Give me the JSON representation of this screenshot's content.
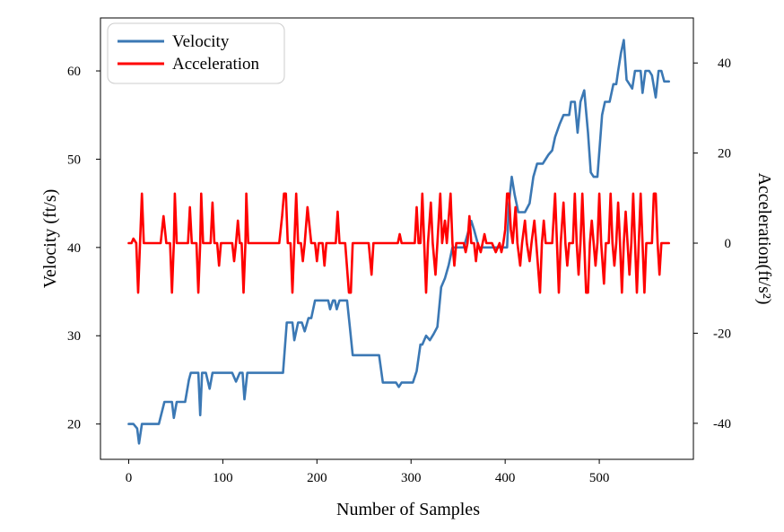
{
  "chart_data": {
    "type": "line",
    "xlabel": "Number of Samples",
    "ylabel_left": "Velocity (ft/s)",
    "ylabel_right": "Acceleration(ft/s²)",
    "xlim": [
      -30,
      600
    ],
    "ylim_left": [
      16,
      66
    ],
    "ylim_right": [
      -48,
      50
    ],
    "x_ticks": [
      0,
      100,
      200,
      300,
      400,
      500
    ],
    "y_ticks_left": [
      20,
      30,
      40,
      50,
      60
    ],
    "y_ticks_right": [
      -40,
      -20,
      0,
      20,
      40
    ],
    "legend_position": "top-left",
    "grid": false,
    "series": [
      {
        "name": "Velocity",
        "axis": "left",
        "color": "#3b78b4",
        "points": [
          [
            0,
            20
          ],
          [
            5,
            20
          ],
          [
            9,
            19.5
          ],
          [
            11,
            17.8
          ],
          [
            14,
            20
          ],
          [
            25,
            20
          ],
          [
            32,
            20
          ],
          [
            38,
            22.5
          ],
          [
            46,
            22.5
          ],
          [
            48,
            20.7
          ],
          [
            51,
            22.5
          ],
          [
            60,
            22.5
          ],
          [
            64,
            25
          ],
          [
            66,
            25.8
          ],
          [
            74,
            25.8
          ],
          [
            76,
            21
          ],
          [
            78,
            25.8
          ],
          [
            82,
            25.8
          ],
          [
            86,
            24
          ],
          [
            89,
            25.8
          ],
          [
            95,
            25.8
          ],
          [
            110,
            25.8
          ],
          [
            114,
            24.8
          ],
          [
            118,
            25.8
          ],
          [
            121,
            25.8
          ],
          [
            123,
            22.8
          ],
          [
            126,
            25.8
          ],
          [
            140,
            25.8
          ],
          [
            160,
            25.8
          ],
          [
            164,
            25.8
          ],
          [
            168,
            31.5
          ],
          [
            174,
            31.5
          ],
          [
            176,
            29.5
          ],
          [
            180,
            31.5
          ],
          [
            184,
            31.5
          ],
          [
            187,
            30.5
          ],
          [
            191,
            32
          ],
          [
            194,
            32
          ],
          [
            198,
            34
          ],
          [
            205,
            34
          ],
          [
            212,
            34
          ],
          [
            214,
            33
          ],
          [
            217,
            34
          ],
          [
            219,
            34
          ],
          [
            221,
            33
          ],
          [
            224,
            34
          ],
          [
            232,
            34
          ],
          [
            235,
            31
          ],
          [
            238,
            27.8
          ],
          [
            262,
            27.8
          ],
          [
            266,
            27.8
          ],
          [
            270,
            24.7
          ],
          [
            284,
            24.7
          ],
          [
            287,
            24.2
          ],
          [
            290,
            24.7
          ],
          [
            302,
            24.7
          ],
          [
            306,
            26
          ],
          [
            310,
            29
          ],
          [
            312,
            29
          ],
          [
            316,
            30
          ],
          [
            320,
            29.5
          ],
          [
            324,
            30.2
          ],
          [
            328,
            31
          ],
          [
            332,
            35.5
          ],
          [
            336,
            36.5
          ],
          [
            340,
            38
          ],
          [
            344,
            40
          ],
          [
            352,
            40
          ],
          [
            356,
            40
          ],
          [
            360,
            41.5
          ],
          [
            364,
            43
          ],
          [
            367,
            42
          ],
          [
            372,
            40
          ],
          [
            380,
            40
          ],
          [
            400,
            40
          ],
          [
            402,
            40
          ],
          [
            404,
            45
          ],
          [
            407,
            48
          ],
          [
            410,
            46
          ],
          [
            414,
            44
          ],
          [
            421,
            44
          ],
          [
            426,
            45
          ],
          [
            430,
            48
          ],
          [
            434,
            49.5
          ],
          [
            440,
            49.5
          ],
          [
            446,
            50.5
          ],
          [
            450,
            51
          ],
          [
            453,
            52.5
          ],
          [
            458,
            54
          ],
          [
            462,
            55
          ],
          [
            468,
            55
          ],
          [
            470,
            56.5
          ],
          [
            474,
            56.5
          ],
          [
            477,
            53
          ],
          [
            480,
            56.5
          ],
          [
            484,
            57.8
          ],
          [
            488,
            53
          ],
          [
            491,
            48.5
          ],
          [
            494,
            48
          ],
          [
            498,
            48
          ],
          [
            503,
            55
          ],
          [
            506,
            56.5
          ],
          [
            511,
            56.5
          ],
          [
            515,
            58.5
          ],
          [
            518,
            58.5
          ],
          [
            520,
            60
          ],
          [
            523,
            62
          ],
          [
            526,
            63.5
          ],
          [
            529,
            59
          ],
          [
            532,
            58.5
          ],
          [
            535,
            58
          ],
          [
            538,
            60
          ],
          [
            541,
            60
          ],
          [
            544,
            60
          ],
          [
            546,
            57.5
          ],
          [
            549,
            60
          ],
          [
            553,
            60
          ],
          [
            556,
            59.5
          ],
          [
            560,
            57
          ],
          [
            563,
            60
          ],
          [
            566,
            60
          ],
          [
            569,
            58.8
          ],
          [
            574,
            58.8
          ]
        ]
      },
      {
        "name": "Acceleration",
        "axis": "right",
        "color": "#ff0000",
        "points": [
          [
            0,
            0
          ],
          [
            3,
            0
          ],
          [
            5,
            1
          ],
          [
            8,
            0
          ],
          [
            10,
            -11
          ],
          [
            12,
            0
          ],
          [
            14,
            11
          ],
          [
            16,
            0
          ],
          [
            20,
            0
          ],
          [
            30,
            0
          ],
          [
            34,
            0
          ],
          [
            37,
            6
          ],
          [
            40,
            0
          ],
          [
            44,
            0
          ],
          [
            46,
            -11
          ],
          [
            48,
            0
          ],
          [
            49,
            11
          ],
          [
            51,
            0
          ],
          [
            60,
            0
          ],
          [
            63,
            0
          ],
          [
            65,
            8
          ],
          [
            67,
            0
          ],
          [
            72,
            0
          ],
          [
            74,
            -11
          ],
          [
            76,
            0
          ],
          [
            77,
            11
          ],
          [
            79,
            0
          ],
          [
            87,
            0
          ],
          [
            89,
            9
          ],
          [
            91,
            0
          ],
          [
            94,
            0
          ],
          [
            96,
            -5
          ],
          [
            98,
            0
          ],
          [
            104,
            0
          ],
          [
            110,
            0
          ],
          [
            112,
            -4
          ],
          [
            114,
            0
          ],
          [
            116,
            5
          ],
          [
            118,
            0
          ],
          [
            120,
            0
          ],
          [
            122,
            -11
          ],
          [
            124,
            0
          ],
          [
            125,
            11
          ],
          [
            127,
            0
          ],
          [
            145,
            0
          ],
          [
            160,
            0
          ],
          [
            163,
            6
          ],
          [
            165,
            11
          ],
          [
            167,
            11
          ],
          [
            169,
            0
          ],
          [
            172,
            0
          ],
          [
            174,
            -11
          ],
          [
            176,
            0
          ],
          [
            178,
            11
          ],
          [
            180,
            0
          ],
          [
            183,
            0
          ],
          [
            185,
            -4
          ],
          [
            187,
            0
          ],
          [
            190,
            8
          ],
          [
            192,
            4
          ],
          [
            194,
            0
          ],
          [
            198,
            0
          ],
          [
            200,
            -4
          ],
          [
            202,
            0
          ],
          [
            206,
            0
          ],
          [
            208,
            -5
          ],
          [
            210,
            0
          ],
          [
            215,
            0
          ],
          [
            220,
            0
          ],
          [
            222,
            7
          ],
          [
            224,
            0
          ],
          [
            230,
            0
          ],
          [
            234,
            -11
          ],
          [
            236,
            -11
          ],
          [
            238,
            0
          ],
          [
            242,
            0
          ],
          [
            252,
            0
          ],
          [
            255,
            0
          ],
          [
            258,
            -7
          ],
          [
            260,
            0
          ],
          [
            264,
            0
          ],
          [
            268,
            0
          ],
          [
            275,
            0
          ],
          [
            286,
            0
          ],
          [
            288,
            2
          ],
          [
            290,
            0
          ],
          [
            300,
            0
          ],
          [
            304,
            0
          ],
          [
            306,
            8
          ],
          [
            308,
            0
          ],
          [
            310,
            0
          ],
          [
            312,
            11
          ],
          [
            314,
            0
          ],
          [
            316,
            -11
          ],
          [
            318,
            0
          ],
          [
            321,
            9
          ],
          [
            323,
            0
          ],
          [
            326,
            -7
          ],
          [
            328,
            0
          ],
          [
            331,
            11
          ],
          [
            333,
            0
          ],
          [
            336,
            5
          ],
          [
            338,
            0
          ],
          [
            342,
            11
          ],
          [
            344,
            0
          ],
          [
            346,
            -5
          ],
          [
            348,
            0
          ],
          [
            352,
            0
          ],
          [
            356,
            0
          ],
          [
            358,
            -2
          ],
          [
            360,
            0
          ],
          [
            362,
            6
          ],
          [
            364,
            0
          ],
          [
            367,
            0
          ],
          [
            369,
            -4
          ],
          [
            371,
            0
          ],
          [
            374,
            -2
          ],
          [
            376,
            0
          ],
          [
            378,
            2
          ],
          [
            380,
            0
          ],
          [
            386,
            0
          ],
          [
            390,
            -2
          ],
          [
            394,
            0
          ],
          [
            396,
            -2
          ],
          [
            398,
            0
          ],
          [
            400,
            3
          ],
          [
            402,
            11
          ],
          [
            404,
            11
          ],
          [
            406,
            3
          ],
          [
            408,
            0
          ],
          [
            411,
            8
          ],
          [
            413,
            0
          ],
          [
            416,
            -5
          ],
          [
            418,
            0
          ],
          [
            421,
            5
          ],
          [
            423,
            0
          ],
          [
            426,
            -4
          ],
          [
            428,
            0
          ],
          [
            431,
            5
          ],
          [
            433,
            0
          ],
          [
            437,
            -11
          ],
          [
            439,
            0
          ],
          [
            441,
            5
          ],
          [
            443,
            0
          ],
          [
            450,
            0
          ],
          [
            453,
            11
          ],
          [
            455,
            0
          ],
          [
            457,
            -11
          ],
          [
            459,
            0
          ],
          [
            462,
            9
          ],
          [
            464,
            0
          ],
          [
            466,
            -5
          ],
          [
            468,
            0
          ],
          [
            472,
            0
          ],
          [
            474,
            11
          ],
          [
            476,
            0
          ],
          [
            478,
            -7
          ],
          [
            480,
            0
          ],
          [
            482,
            11
          ],
          [
            484,
            0
          ],
          [
            486,
            -11
          ],
          [
            488,
            -11
          ],
          [
            490,
            0
          ],
          [
            492,
            5
          ],
          [
            494,
            0
          ],
          [
            496,
            -5
          ],
          [
            498,
            0
          ],
          [
            500,
            11
          ],
          [
            502,
            0
          ],
          [
            505,
            -9
          ],
          [
            507,
            0
          ],
          [
            510,
            0
          ],
          [
            512,
            11
          ],
          [
            514,
            0
          ],
          [
            516,
            -5
          ],
          [
            518,
            0
          ],
          [
            520,
            9
          ],
          [
            522,
            0
          ],
          [
            524,
            -11
          ],
          [
            526,
            0
          ],
          [
            528,
            7
          ],
          [
            530,
            0
          ],
          [
            532,
            -7
          ],
          [
            534,
            0
          ],
          [
            536,
            11
          ],
          [
            538,
            0
          ],
          [
            540,
            -11
          ],
          [
            542,
            0
          ],
          [
            544,
            11
          ],
          [
            546,
            0
          ],
          [
            548,
            -11
          ],
          [
            550,
            0
          ],
          [
            554,
            0
          ],
          [
            556,
            0
          ],
          [
            558,
            11
          ],
          [
            560,
            11
          ],
          [
            562,
            0
          ],
          [
            564,
            -7
          ],
          [
            566,
            0
          ],
          [
            569,
            0
          ],
          [
            574,
            0
          ]
        ]
      }
    ]
  }
}
